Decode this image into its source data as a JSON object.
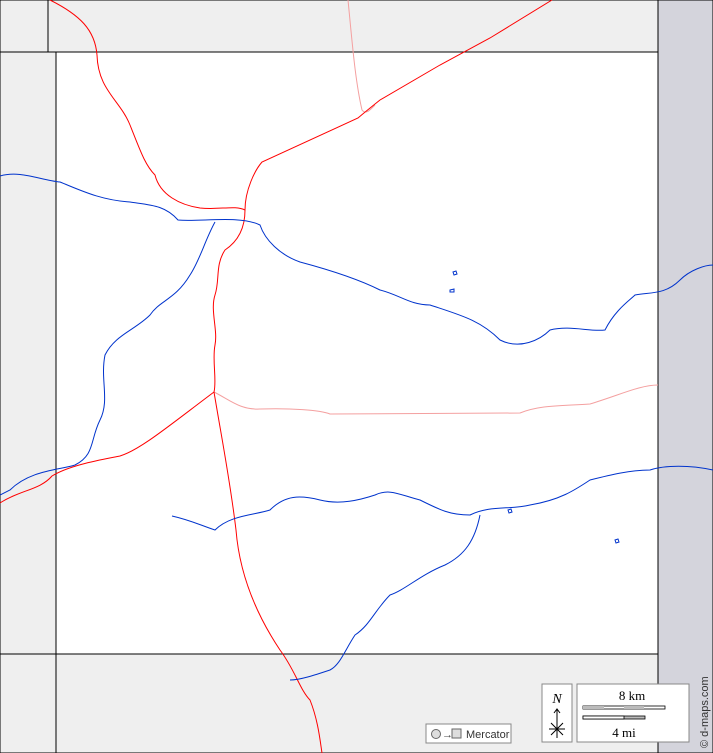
{
  "map": {
    "projection_label": "Mercator",
    "north_label": "N",
    "scale_km_label": "8 km",
    "scale_mi_label": "4 mi",
    "credit": "© d-maps.com",
    "colors": {
      "outside": "#efefef",
      "county": "#ffffff",
      "road": "#ff0000",
      "minor_road": "#f4a0a0",
      "river": "#0033cc",
      "side_band": "#d4d4dc",
      "border": "#000000"
    }
  }
}
